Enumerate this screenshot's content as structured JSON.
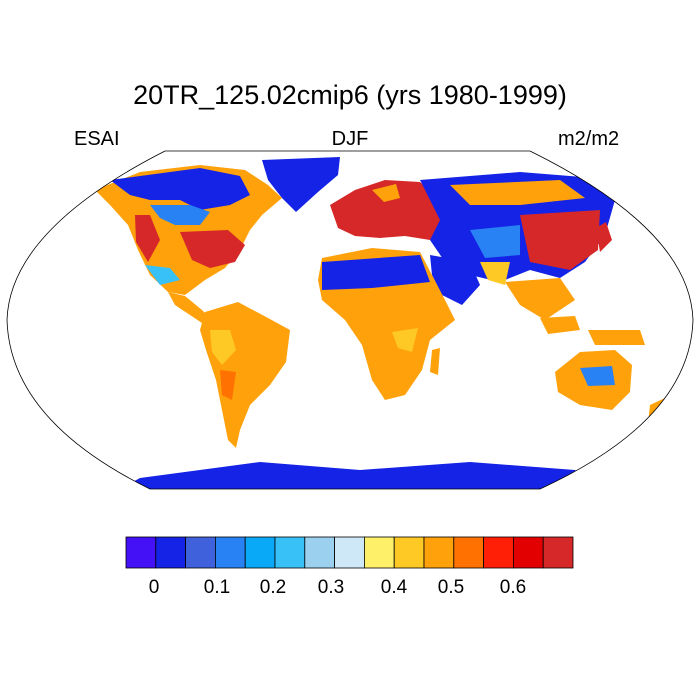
{
  "title": "20TR_125.02cmip6 (yrs 1980-1999)",
  "left_string": "ESAI",
  "center_string": "DJF",
  "right_string": "m2/m2",
  "colorbar": {
    "colors": [
      "#4410f5",
      "#1423e6",
      "#3f62dc",
      "#2882f3",
      "#0aa9f7",
      "#37c1f7",
      "#9bd1ef",
      "#cfe8f8",
      "#fff06a",
      "#ffc925",
      "#ffa10a",
      "#ff7100",
      "#ff1e06",
      "#e30000",
      "#d62828"
    ],
    "tick_labels": [
      "0",
      "0.1",
      "0.2",
      "0.3",
      "0.4",
      "0.5",
      "0.6"
    ]
  },
  "map": {
    "projection": "Robinson",
    "variable": "ESAI",
    "season": "DJF"
  }
}
